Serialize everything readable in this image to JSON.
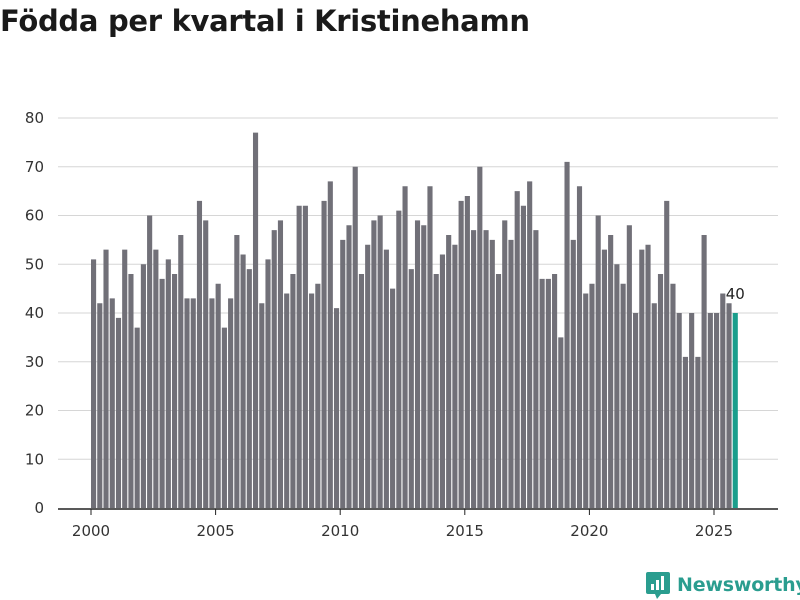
{
  "chart_data": {
    "type": "bar",
    "title": "Födda per kvartal i Kristinehamn",
    "xlabel": "",
    "ylabel": "",
    "ylim": [
      0,
      80
    ],
    "yticks": [
      0,
      10,
      20,
      30,
      40,
      50,
      60,
      70,
      80
    ],
    "xticks": [
      "2000",
      "2005",
      "2010",
      "2015",
      "2020",
      "2025"
    ],
    "grid": true,
    "start_year": 2000,
    "start_quarter": 1,
    "values": [
      51,
      42,
      53,
      43,
      39,
      53,
      48,
      37,
      50,
      60,
      53,
      47,
      51,
      48,
      56,
      43,
      43,
      63,
      59,
      43,
      46,
      37,
      43,
      56,
      52,
      49,
      77,
      42,
      51,
      57,
      59,
      44,
      48,
      62,
      62,
      44,
      46,
      63,
      67,
      41,
      55,
      58,
      70,
      48,
      54,
      59,
      60,
      53,
      45,
      61,
      66,
      49,
      59,
      58,
      66,
      48,
      52,
      56,
      54,
      63,
      64,
      57,
      70,
      57,
      55,
      48,
      59,
      55,
      65,
      62,
      67,
      57,
      47,
      47,
      48,
      35,
      71,
      55,
      66,
      44,
      46,
      60,
      53,
      56,
      50,
      46,
      58,
      40,
      53,
      54,
      42,
      48,
      63,
      46,
      40,
      31,
      40,
      31,
      56,
      40,
      40,
      44,
      42,
      40
    ],
    "bar_color": "#717078",
    "highlight_color": "#1a9e8c",
    "highlight_index": 103,
    "last_value_label": "40"
  },
  "brand": {
    "name": "Newsworthy",
    "icon": "newsworthy-logo-icon",
    "color": "#2a9d8f"
  }
}
